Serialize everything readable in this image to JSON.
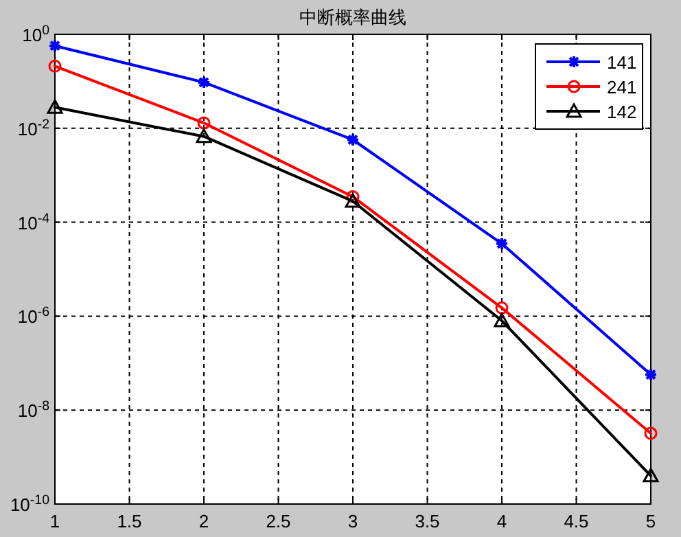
{
  "chart_data": {
    "type": "line",
    "title": "中断概率曲线",
    "x": [
      1,
      2,
      3,
      4,
      5
    ],
    "series": [
      {
        "name": "141",
        "color": "#0000ff",
        "marker": "cross",
        "values": [
          0.57,
          0.095,
          0.0057,
          3.5e-05,
          5.7e-08
        ]
      },
      {
        "name": "241",
        "color": "#ff0000",
        "marker": "circle",
        "values": [
          0.21,
          0.013,
          0.00035,
          1.5e-06,
          3.2e-09
        ]
      },
      {
        "name": "142",
        "color": "#000000",
        "marker": "triangle",
        "values": [
          0.028,
          0.0067,
          0.00028,
          8e-07,
          4e-10
        ]
      }
    ],
    "log": "y",
    "xlim": [
      1,
      5
    ],
    "xticks": [
      1,
      1.5,
      2,
      2.5,
      3,
      3.5,
      4,
      4.5,
      5
    ],
    "ylim": [
      1e-10,
      1
    ],
    "yticks": [
      {
        "value": 1e-10,
        "label": "10$^{-10}$"
      },
      {
        "value": 1e-08,
        "label": "10$^{-8}$"
      },
      {
        "value": 1e-06,
        "label": "10$^{-6}$"
      },
      {
        "value": 0.0001,
        "label": "10$^{-4}$"
      },
      {
        "value": 0.01,
        "label": "10$^{-2}$"
      },
      {
        "value": 1,
        "label": "10$^{0}$"
      }
    ],
    "grid": true,
    "legend": "top right",
    "line_style": "solid"
  }
}
